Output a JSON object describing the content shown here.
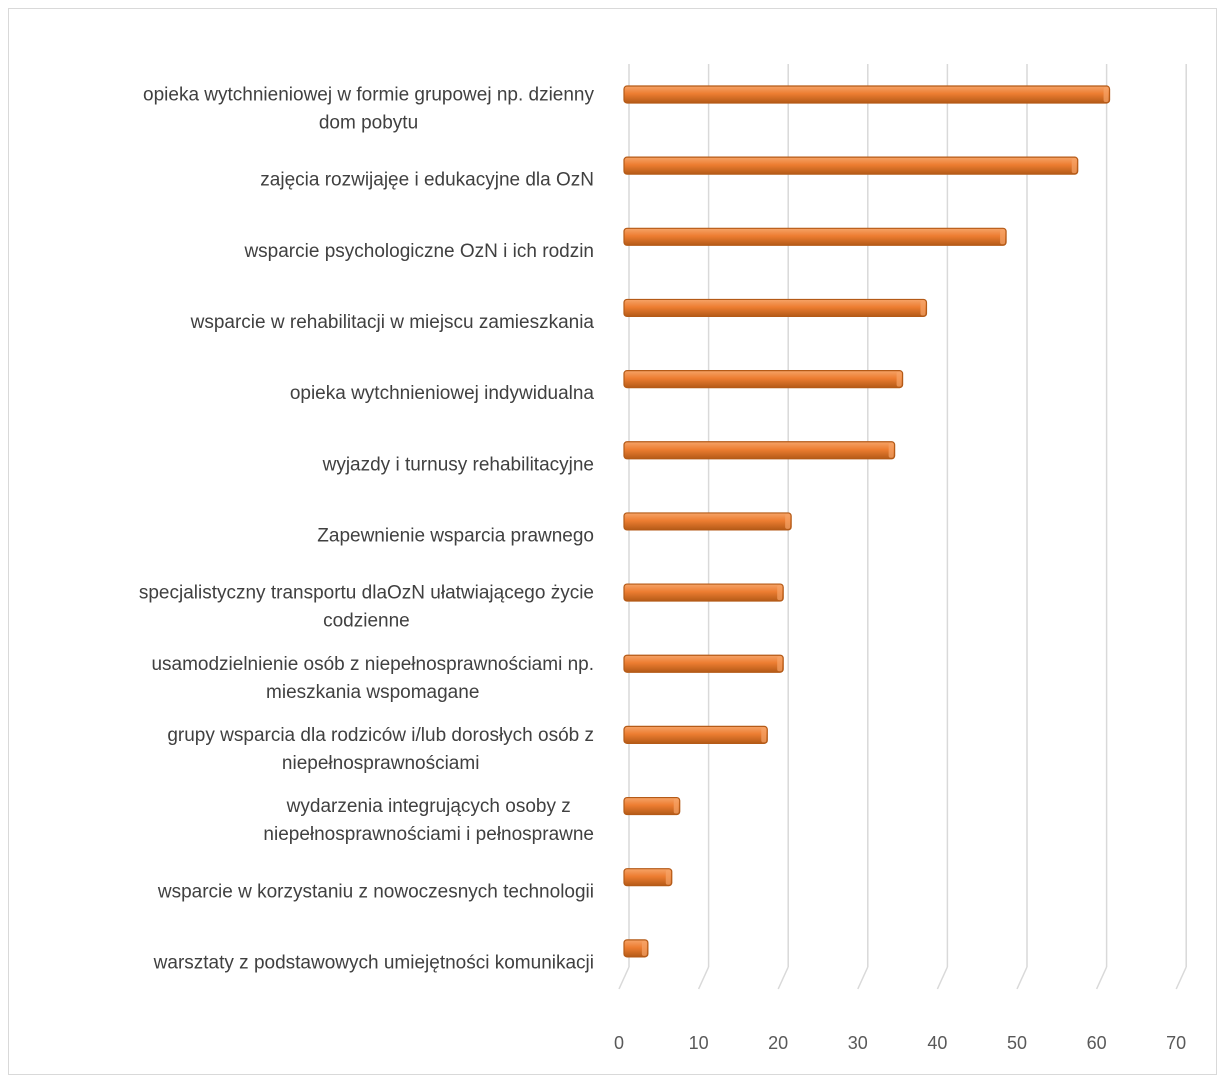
{
  "chart_data": {
    "type": "bar",
    "orientation": "horizontal",
    "title": "",
    "xlabel": "",
    "ylabel": "",
    "categories": [
      [
        "opieka wytchnieniowej w formie grupowej np. dzienny",
        "dom pobytu"
      ],
      [
        "zajęcia rozwijajęe i edukacyjne dla OzN"
      ],
      [
        "wsparcie psychologiczne OzN i ich rodzin"
      ],
      [
        "wsparcie w rehabilitacji w miejscu zamieszkania"
      ],
      [
        "opieka wytchnieniowej indywidualna"
      ],
      [
        "wyjazdy i turnusy rehabilitacyjne"
      ],
      [
        "Zapewnienie wsparcia prawnego"
      ],
      [
        "specjalistyczny transportu dlaOzN ułatwiającego życie",
        "codzienne"
      ],
      [
        "usamodzielnienie osób z niepełnosprawnościami np.",
        "mieszkania wspomagane"
      ],
      [
        "grupy wsparcia dla rodziców i/lub dorosłych osób z",
        "niepełnosprawnościami"
      ],
      [
        "wydarzenia integrujących osoby z",
        "niepełnosprawnościami i pełnosprawne"
      ],
      [
        "wsparcie w korzystaniu z nowoczesnych technologii"
      ],
      [
        "warsztaty z podstawowych umiejętności komunikacji"
      ]
    ],
    "values": [
      61,
      57,
      48,
      38,
      35,
      34,
      21,
      20,
      20,
      18,
      7,
      6,
      3
    ],
    "xlim": [
      0,
      70
    ],
    "xticks": [
      "0",
      "10",
      "20",
      "30",
      "40",
      "50",
      "60",
      "70"
    ],
    "grid": true,
    "legend": "none",
    "colors": {
      "bar": "#ed7d31",
      "bar_top": "#f6a468",
      "bar_edge": "#b45a17",
      "grid": "#d9d9d9"
    }
  }
}
